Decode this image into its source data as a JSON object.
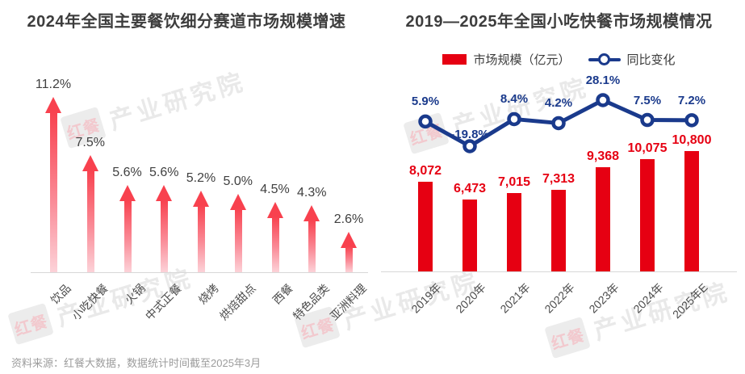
{
  "source_note": "资料来源：红餐大数据，数据统计时间截至2025年3月",
  "watermark": {
    "logo": "红餐",
    "org": "产业研究院"
  },
  "chart_data": [
    {
      "type": "bar",
      "style": "upward-arrows",
      "title": "2024年全国主要餐饮细分赛道市场规模增速",
      "categories": [
        "饮品",
        "小吃快餐",
        "火锅",
        "中式正餐",
        "烧烤",
        "烘焙甜点",
        "西餐",
        "特色品类",
        "亚洲料理"
      ],
      "values": [
        11.2,
        7.5,
        5.6,
        5.6,
        5.2,
        5.0,
        4.5,
        4.3,
        2.6
      ],
      "value_labels": [
        "11.2%",
        "7.5%",
        "5.6%",
        "5.6%",
        "5.2%",
        "5.0%",
        "4.5%",
        "4.3%",
        "2.6%"
      ],
      "ylim": [
        0,
        11.2
      ],
      "grid": false,
      "colors": {
        "arrow_top": "#f8414e",
        "arrow_bottom": "#fcd2d8",
        "label": "#404040"
      }
    },
    {
      "type": "bar",
      "style": "bar-with-line",
      "title": "2019—2025年全国小吃快餐市场规模情况",
      "categories": [
        "2019年",
        "2020年",
        "2021年",
        "2022年",
        "2023年",
        "2024年",
        "2025年E"
      ],
      "series": [
        {
          "name": "市场规模（亿元）",
          "kind": "bar",
          "values": [
            8072,
            6473,
            7015,
            7313,
            9368,
            10075,
            10800
          ],
          "labels": [
            "8,072",
            "6,473",
            "7,015",
            "7,313",
            "9,368",
            "10,075",
            "10,800"
          ],
          "color": "#e60012"
        },
        {
          "name": "同比变化",
          "kind": "line",
          "values": [
            5.9,
            -19.8,
            8.4,
            4.2,
            28.1,
            7.5,
            7.2
          ],
          "labels": [
            "5.9%",
            "-19.8%",
            "8.4%",
            "4.2%",
            "28.1%",
            "7.5%",
            "7.2%"
          ],
          "color": "#1a3a8c"
        }
      ],
      "bar_ylim": [
        0,
        10800
      ],
      "line_ylim": [
        -25,
        30
      ],
      "grid": false,
      "legend_position": "top"
    }
  ]
}
